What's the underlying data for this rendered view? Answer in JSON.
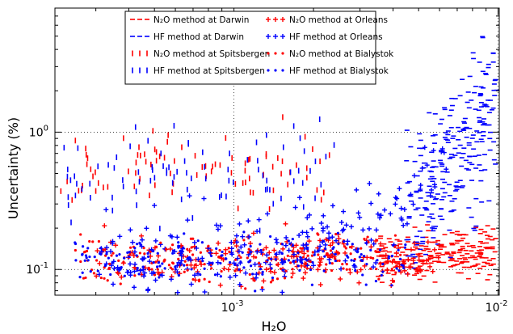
{
  "chart_data": {
    "type": "scatter",
    "xlabel": "H₂O",
    "ylabel": "Uncertainty (%)",
    "xscale": "log",
    "yscale": "log",
    "xlim": [
      0.00021,
      0.0101
    ],
    "ylim": [
      0.065,
      8
    ],
    "grid": "dotted at 10^-3 and 10^0 / 10^-1",
    "legend_position": "top-center",
    "x_ticks": [
      {
        "value": 0.001,
        "base": "10",
        "exp": "-3"
      },
      {
        "value": 0.01,
        "base": "10",
        "exp": "-2"
      }
    ],
    "y_ticks": [
      {
        "value": 1,
        "base": "10",
        "exp": "0"
      },
      {
        "value": 0.1,
        "base": "10",
        "exp": "-1"
      }
    ],
    "colors": {
      "n2o": "#ff0000",
      "hf": "#0000ff"
    },
    "series": [
      {
        "name": "N₂O method at Darwin",
        "marker": "hline",
        "color": "#ff0000",
        "density": 220,
        "x_range": [
          0.0035,
          0.0099
        ],
        "y_center": 0.13,
        "y_spread": 0.15
      },
      {
        "name": "HF method at Darwin",
        "marker": "hline",
        "color": "#0000ff",
        "density": 260,
        "x_range": [
          0.0045,
          0.0099
        ],
        "y_center": 0.7,
        "y_spread": 0.55
      },
      {
        "name": "N₂O method at Spitsbergen",
        "marker": "vline",
        "color": "#ff0000",
        "density": 90,
        "x_range": [
          0.00022,
          0.0024
        ],
        "y_center": 0.55,
        "y_spread": 0.3
      },
      {
        "name": "HF method at Spitsbergen",
        "marker": "vline",
        "color": "#0000ff",
        "density": 90,
        "x_range": [
          0.00022,
          0.0024
        ],
        "y_center": 0.5,
        "y_spread": 0.3
      },
      {
        "name": "N₂O method at Orleans",
        "marker": "plus",
        "color": "#ff0000",
        "density": 200,
        "x_range": [
          0.0003,
          0.006
        ],
        "y_center": 0.12,
        "y_spread": 0.18
      },
      {
        "name": "HF method at Orleans",
        "marker": "plus",
        "color": "#0000ff",
        "density": 240,
        "x_range": [
          0.0003,
          0.0065
        ],
        "y_center": 0.14,
        "y_spread": 0.3
      },
      {
        "name": "N₂O method at Bialystok",
        "marker": "dot",
        "color": "#ff0000",
        "density": 200,
        "x_range": [
          0.00025,
          0.0045
        ],
        "y_center": 0.12,
        "y_spread": 0.17
      },
      {
        "name": "HF method at Bialystok",
        "marker": "dot",
        "color": "#0000ff",
        "density": 200,
        "x_range": [
          0.00025,
          0.0045
        ],
        "y_center": 0.12,
        "y_spread": 0.17
      }
    ]
  }
}
